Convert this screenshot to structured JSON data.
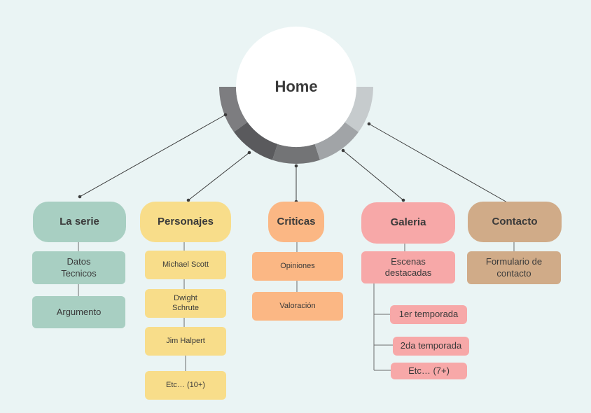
{
  "home": {
    "label": "Home"
  },
  "ring_colors": [
    "#7d7d80",
    "#5a5a5d",
    "#737476",
    "#a1a4a7",
    "#c6cbcd"
  ],
  "categories": [
    {
      "label": "La serie",
      "color": "#a8cfc2",
      "children": [
        "Datos\nTecnicos",
        "Argumento"
      ]
    },
    {
      "label": "Personajes",
      "color": "#f8dd8a",
      "children": [
        "Michael Scott",
        "Dwight\nSchrute",
        "Jim Halpert",
        "Etc… (10+)"
      ]
    },
    {
      "label": "Criticas",
      "color": "#fbb784",
      "children": [
        "Opiniones",
        "Valoración"
      ]
    },
    {
      "label": "Galeria",
      "color": "#f7a8a8",
      "children": [
        "Escenas\ndestacadas"
      ],
      "grandchildren": [
        "1er temporada",
        "2da temporada",
        "Etc… (7+)"
      ]
    },
    {
      "label": "Contacto",
      "color": "#d0ab88",
      "children": [
        "Formulario de\ncontacto"
      ]
    }
  ]
}
